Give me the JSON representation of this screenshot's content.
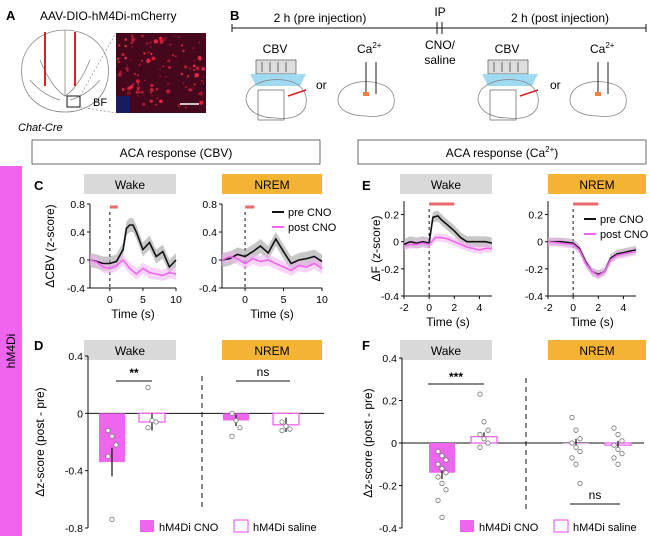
{
  "colors": {
    "magenta": "#ee66ee",
    "magenta_dark": "#d02ed0",
    "wake_bg": "#d9d9d9",
    "nrem_bg": "#f5b335",
    "scale_red": "#e86a6a",
    "trace_black": "#111111",
    "trace_magenta": "#ee66ee",
    "cbv_blue": "#8ed4ee"
  },
  "panel_letters": {
    "A": "A",
    "B": "B",
    "C": "C",
    "D": "D",
    "E": "E",
    "F": "F"
  },
  "panelA": {
    "virus_label": "AAV-DIO-hM4Di-mCherry",
    "region_label": "BF",
    "mouse_line": "Chat-Cre"
  },
  "panelB": {
    "pre_label": "2 h (pre injection)",
    "post_label": "2 h (post injection)",
    "ip_label": "IP",
    "cno_label": "CNO/",
    "saline_label": "saline",
    "cbv_label": "CBV",
    "ca_label": "Ca",
    "ca_sup": "2+",
    "or_label": "or"
  },
  "section_boxes": {
    "cbv": "ACA response (CBV)",
    "ca_prefix": "ACA response (Ca",
    "ca_sup": "2+",
    "ca_suffix": ")"
  },
  "side_label": "hM4Di",
  "state_labels": {
    "wake": "Wake",
    "nrem": "NREM"
  },
  "legend": {
    "pre_cno": "pre CNO",
    "post_cno": "post CNO",
    "bar_cno": "hM4Di CNO",
    "bar_saline": "hM4Di saline"
  },
  "significance": {
    "CD_wake": "**",
    "CD_nrem": "ns",
    "F_wake": "***",
    "F_nrem": "ns"
  },
  "chart_data": [
    {
      "id": "C-wake",
      "type": "line",
      "ylabel": "ΔCBV (z-score)",
      "xlabel": "Time (s)",
      "xlim": [
        -3,
        10
      ],
      "ylim": [
        -0.4,
        0.8
      ],
      "xticks": [
        0,
        5,
        10
      ],
      "yticks": [
        -0.4,
        0,
        0.4,
        0.8
      ],
      "xtick_labels": [
        "0",
        "5",
        "10"
      ],
      "ytick_labels": [
        "-0.4",
        "0",
        "0.4",
        "0.8"
      ],
      "stim_bar": [
        0,
        1.2
      ],
      "series": [
        {
          "name": "pre CNO",
          "x": [
            -3,
            -2,
            -1,
            0,
            1,
            2,
            2.5,
            3,
            3.5,
            4,
            5,
            6,
            7,
            8,
            9,
            10
          ],
          "y": [
            0,
            -0.02,
            -0.05,
            -0.05,
            -0.02,
            0.15,
            0.45,
            0.5,
            0.5,
            0.4,
            0.15,
            0.25,
            0.05,
            0.12,
            -0.1,
            0.0
          ],
          "sem": 0.1
        },
        {
          "name": "post CNO",
          "x": [
            -3,
            -2,
            -1,
            0,
            1,
            2,
            3,
            4,
            5,
            6,
            7,
            8,
            9,
            10
          ],
          "y": [
            0,
            -0.03,
            -0.1,
            -0.12,
            -0.08,
            0.0,
            -0.12,
            -0.2,
            -0.12,
            -0.18,
            -0.2,
            -0.22,
            -0.18,
            -0.2
          ],
          "sem": 0.08
        }
      ]
    },
    {
      "id": "C-nrem",
      "type": "line",
      "xlabel": "Time (s)",
      "xlim": [
        -3,
        10
      ],
      "ylim": [
        -0.4,
        0.8
      ],
      "xticks": [
        0,
        5,
        10
      ],
      "yticks": [
        -0.4,
        0,
        0.4,
        0.8
      ],
      "xtick_labels": [
        "0",
        "5",
        "10"
      ],
      "ytick_labels": [
        "-0.4",
        "0",
        "0.4",
        "0.8"
      ],
      "stim_bar": [
        0,
        1.2
      ],
      "series": [
        {
          "name": "pre CNO",
          "x": [
            -3,
            -2,
            -1,
            0,
            1,
            2,
            3,
            4,
            5,
            6,
            7,
            8,
            9,
            10
          ],
          "y": [
            0,
            0.02,
            0.08,
            0.05,
            0.12,
            0.2,
            0.1,
            0.3,
            0.12,
            -0.05,
            0.0,
            0.02,
            0.05,
            -0.02
          ],
          "sem": 0.1
        },
        {
          "name": "post CNO",
          "x": [
            -3,
            -2,
            -1,
            0,
            1,
            2,
            3,
            4,
            5,
            6,
            7,
            8,
            9,
            10
          ],
          "y": [
            0,
            0.05,
            0.02,
            -0.05,
            0.02,
            -0.02,
            0.0,
            -0.05,
            -0.1,
            -0.15,
            -0.08,
            -0.1,
            -0.05,
            -0.12
          ],
          "sem": 0.08
        }
      ]
    },
    {
      "id": "D",
      "type": "bar",
      "ylabel": "Δz-score (post - pre)",
      "ylim": [
        -0.8,
        0.4
      ],
      "yticks": [
        -0.8,
        -0.4,
        0,
        0.4
      ],
      "ytick_labels": [
        "-0.8",
        "-0.4",
        "0",
        "0.4"
      ],
      "groups": [
        "Wake",
        "NREM"
      ],
      "series": [
        {
          "name": "hM4Di CNO",
          "values": [
            -0.34,
            -0.05
          ],
          "err": [
            0.1,
            0.04
          ],
          "points": [
            [
              -0.12,
              -0.16,
              -0.22,
              -0.3,
              -0.74
            ],
            [
              0.0,
              -0.05,
              -0.1,
              -0.16
            ]
          ]
        },
        {
          "name": "hM4Di saline",
          "values": [
            -0.06,
            -0.08
          ],
          "err": [
            0.06,
            0.05
          ],
          "points": [
            [
              0.18,
              -0.05,
              -0.06,
              -0.1
            ],
            [
              -0.06,
              -0.09,
              -0.11,
              -0.12
            ]
          ]
        }
      ]
    },
    {
      "id": "E-wake",
      "type": "line",
      "ylabel": "ΔF (z-score)",
      "xlabel": "Time (s)",
      "xlim": [
        -2,
        5
      ],
      "ylim": [
        -0.4,
        0.3
      ],
      "xticks": [
        -2,
        0,
        2,
        4
      ],
      "yticks": [
        -0.4,
        -0.2,
        0,
        0.2
      ],
      "xtick_labels": [
        "-2",
        "0",
        "2",
        "4"
      ],
      "ytick_labels": [
        "-0.4",
        "-0.2",
        "0",
        "0.2"
      ],
      "stim_bar": [
        0,
        2
      ],
      "series": [
        {
          "name": "pre CNO",
          "x": [
            -2,
            -1.5,
            -1,
            -0.5,
            0,
            0.3,
            0.7,
            1,
            1.5,
            2,
            2.5,
            3,
            3.5,
            4,
            4.5,
            5
          ],
          "y": [
            -0.02,
            0.0,
            -0.01,
            0.0,
            -0.01,
            0.18,
            0.19,
            0.16,
            0.12,
            0.08,
            0.03,
            0.0,
            0.0,
            0.0,
            0.0,
            -0.01
          ],
          "sem": 0.04
        },
        {
          "name": "post CNO",
          "x": [
            -2,
            -1.5,
            -1,
            -0.5,
            0,
            0.5,
            1,
            1.5,
            2,
            2.5,
            3,
            3.5,
            4,
            4.5,
            5
          ],
          "y": [
            -0.03,
            -0.02,
            -0.02,
            -0.01,
            -0.02,
            0.03,
            0.03,
            0.02,
            0.0,
            -0.02,
            -0.04,
            -0.05,
            -0.06,
            -0.05,
            -0.05
          ],
          "sem": 0.03
        }
      ]
    },
    {
      "id": "E-nrem",
      "type": "line",
      "xlabel": "Time (s)",
      "xlim": [
        -2,
        5
      ],
      "ylim": [
        -0.4,
        0.3
      ],
      "xticks": [
        -2,
        0,
        2,
        4
      ],
      "yticks": [
        -0.4,
        -0.2,
        0,
        0.2
      ],
      "xtick_labels": [
        "-2",
        "0",
        "2",
        "4"
      ],
      "ytick_labels": [
        "-0.4",
        "-0.2",
        "0",
        "0.2"
      ],
      "stim_bar": [
        0,
        2
      ],
      "series": [
        {
          "name": "pre CNO",
          "x": [
            -2,
            -1,
            0,
            0.5,
            1,
            1.5,
            2,
            2.5,
            3,
            3.5,
            4,
            4.5,
            5
          ],
          "y": [
            0.0,
            0.0,
            -0.01,
            -0.05,
            -0.15,
            -0.22,
            -0.24,
            -0.22,
            -0.12,
            -0.09,
            -0.08,
            -0.07,
            -0.06
          ],
          "sem": 0.03
        },
        {
          "name": "post CNO",
          "x": [
            -2,
            -1,
            0,
            0.5,
            1,
            1.5,
            2,
            2.5,
            3,
            3.5,
            4,
            4.5,
            5
          ],
          "y": [
            0.0,
            -0.01,
            -0.02,
            -0.06,
            -0.16,
            -0.22,
            -0.25,
            -0.22,
            -0.13,
            -0.1,
            -0.09,
            -0.08,
            -0.07
          ],
          "sem": 0.03
        }
      ]
    },
    {
      "id": "F",
      "type": "bar",
      "ylabel": "Δz-score (post - pre)",
      "ylim": [
        -0.4,
        0.4
      ],
      "yticks": [
        -0.4,
        -0.2,
        0,
        0.2,
        0.4
      ],
      "ytick_labels": [
        "-0.4",
        "-0.2",
        "0",
        "0.2",
        "0.4"
      ],
      "groups": [
        "Wake",
        "NREM"
      ],
      "series": [
        {
          "name": "hM4Di CNO",
          "values": [
            -0.14,
            0.0
          ],
          "err": [
            0.03,
            0.02
          ],
          "points": [
            [
              -0.04,
              -0.06,
              -0.08,
              -0.1,
              -0.12,
              -0.14,
              -0.16,
              -0.19,
              -0.22,
              -0.27,
              -0.35
            ],
            [
              0.12,
              0.06,
              0.02,
              0.0,
              -0.02,
              -0.04,
              -0.07,
              -0.1,
              -0.19
            ]
          ]
        },
        {
          "name": "hM4Di saline",
          "values": [
            0.03,
            -0.01
          ],
          "err": [
            0.02,
            0.02
          ],
          "points": [
            [
              0.23,
              0.1,
              0.06,
              0.04,
              0.02,
              0.0,
              -0.02
            ],
            [
              0.07,
              0.04,
              0.01,
              -0.01,
              -0.03,
              -0.05,
              -0.07,
              -0.1
            ]
          ]
        }
      ]
    }
  ]
}
